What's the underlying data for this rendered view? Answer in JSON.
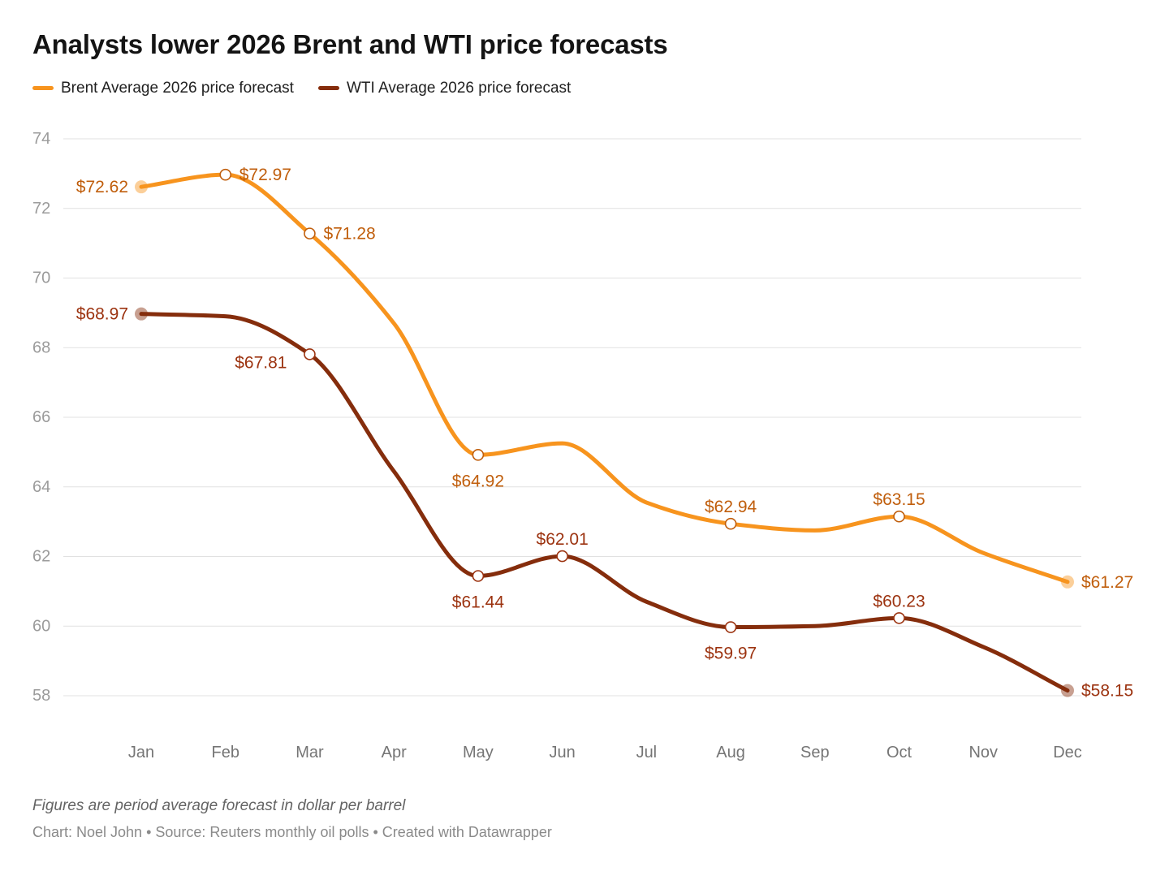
{
  "header": {
    "title": "Analysts lower 2026 Brent and WTI price forecasts"
  },
  "chart_data": {
    "type": "line",
    "title": "Analysts lower 2026 Brent and WTI price forecasts",
    "xlabel": "",
    "ylabel": "",
    "x_categories": [
      "Jan",
      "Feb",
      "Mar",
      "Apr",
      "May",
      "Jun",
      "Jul",
      "Aug",
      "Sep",
      "Oct",
      "Nov",
      "Dec"
    ],
    "y_ticks": [
      58,
      60,
      62,
      64,
      66,
      68,
      70,
      72,
      74
    ],
    "y_range": [
      58,
      74
    ],
    "grid": true,
    "legend_position": "top",
    "colors": {
      "grid_line": "#e1e1e1",
      "y_tick_label": "#9b9b9b",
      "x_tick_label": "#757575"
    },
    "series": [
      {
        "key": "brent",
        "name": "Brent Average 2026 price forecast",
        "color": "#F7941E",
        "label_color": "#C05E0C",
        "values": [
          72.62,
          72.97,
          71.28,
          68.7,
          64.92,
          65.25,
          63.55,
          62.94,
          62.75,
          63.15,
          62.1,
          61.27
        ],
        "labeled_points": [
          {
            "month": "Jan",
            "value": 72.62,
            "label": "$72.62",
            "marker": "dot",
            "placement": "left"
          },
          {
            "month": "Feb",
            "value": 72.97,
            "label": "$72.97",
            "marker": "ring",
            "placement": "right"
          },
          {
            "month": "Mar",
            "value": 71.28,
            "label": "$71.28",
            "marker": "ring",
            "placement": "right"
          },
          {
            "month": "May",
            "value": 64.92,
            "label": "$64.92",
            "marker": "ring",
            "placement": "below"
          },
          {
            "month": "Aug",
            "value": 62.94,
            "label": "$62.94",
            "marker": "ring",
            "placement": "above"
          },
          {
            "month": "Oct",
            "value": 63.15,
            "label": "$63.15",
            "marker": "ring",
            "placement": "above"
          },
          {
            "month": "Dec",
            "value": 61.27,
            "label": "$61.27",
            "marker": "dot",
            "placement": "right"
          }
        ]
      },
      {
        "key": "wti",
        "name": "WTI Average 2026 price forecast",
        "color": "#852D0C",
        "label_color": "#9C3310",
        "values": [
          68.97,
          68.9,
          67.81,
          64.45,
          61.44,
          62.01,
          60.7,
          59.97,
          60.0,
          60.23,
          59.4,
          58.15
        ],
        "labeled_points": [
          {
            "month": "Jan",
            "value": 68.97,
            "label": "$68.97",
            "marker": "dot",
            "placement": "left"
          },
          {
            "month": "Mar",
            "value": 67.81,
            "label": "$67.81",
            "marker": "ring",
            "placement": "below-left"
          },
          {
            "month": "May",
            "value": 61.44,
            "label": "$61.44",
            "marker": "ring",
            "placement": "below"
          },
          {
            "month": "Jun",
            "value": 62.01,
            "label": "$62.01",
            "marker": "ring",
            "placement": "above"
          },
          {
            "month": "Aug",
            "value": 59.97,
            "label": "$59.97",
            "marker": "ring",
            "placement": "below"
          },
          {
            "month": "Oct",
            "value": 60.23,
            "label": "$60.23",
            "marker": "ring",
            "placement": "above"
          },
          {
            "month": "Dec",
            "value": 58.15,
            "label": "$58.15",
            "marker": "dot",
            "placement": "right"
          }
        ]
      }
    ]
  },
  "footer": {
    "note": "Figures are period average forecast in dollar per barrel",
    "credit": "Chart: Noel John • Source: Reuters monthly oil polls • Created with Datawrapper"
  }
}
